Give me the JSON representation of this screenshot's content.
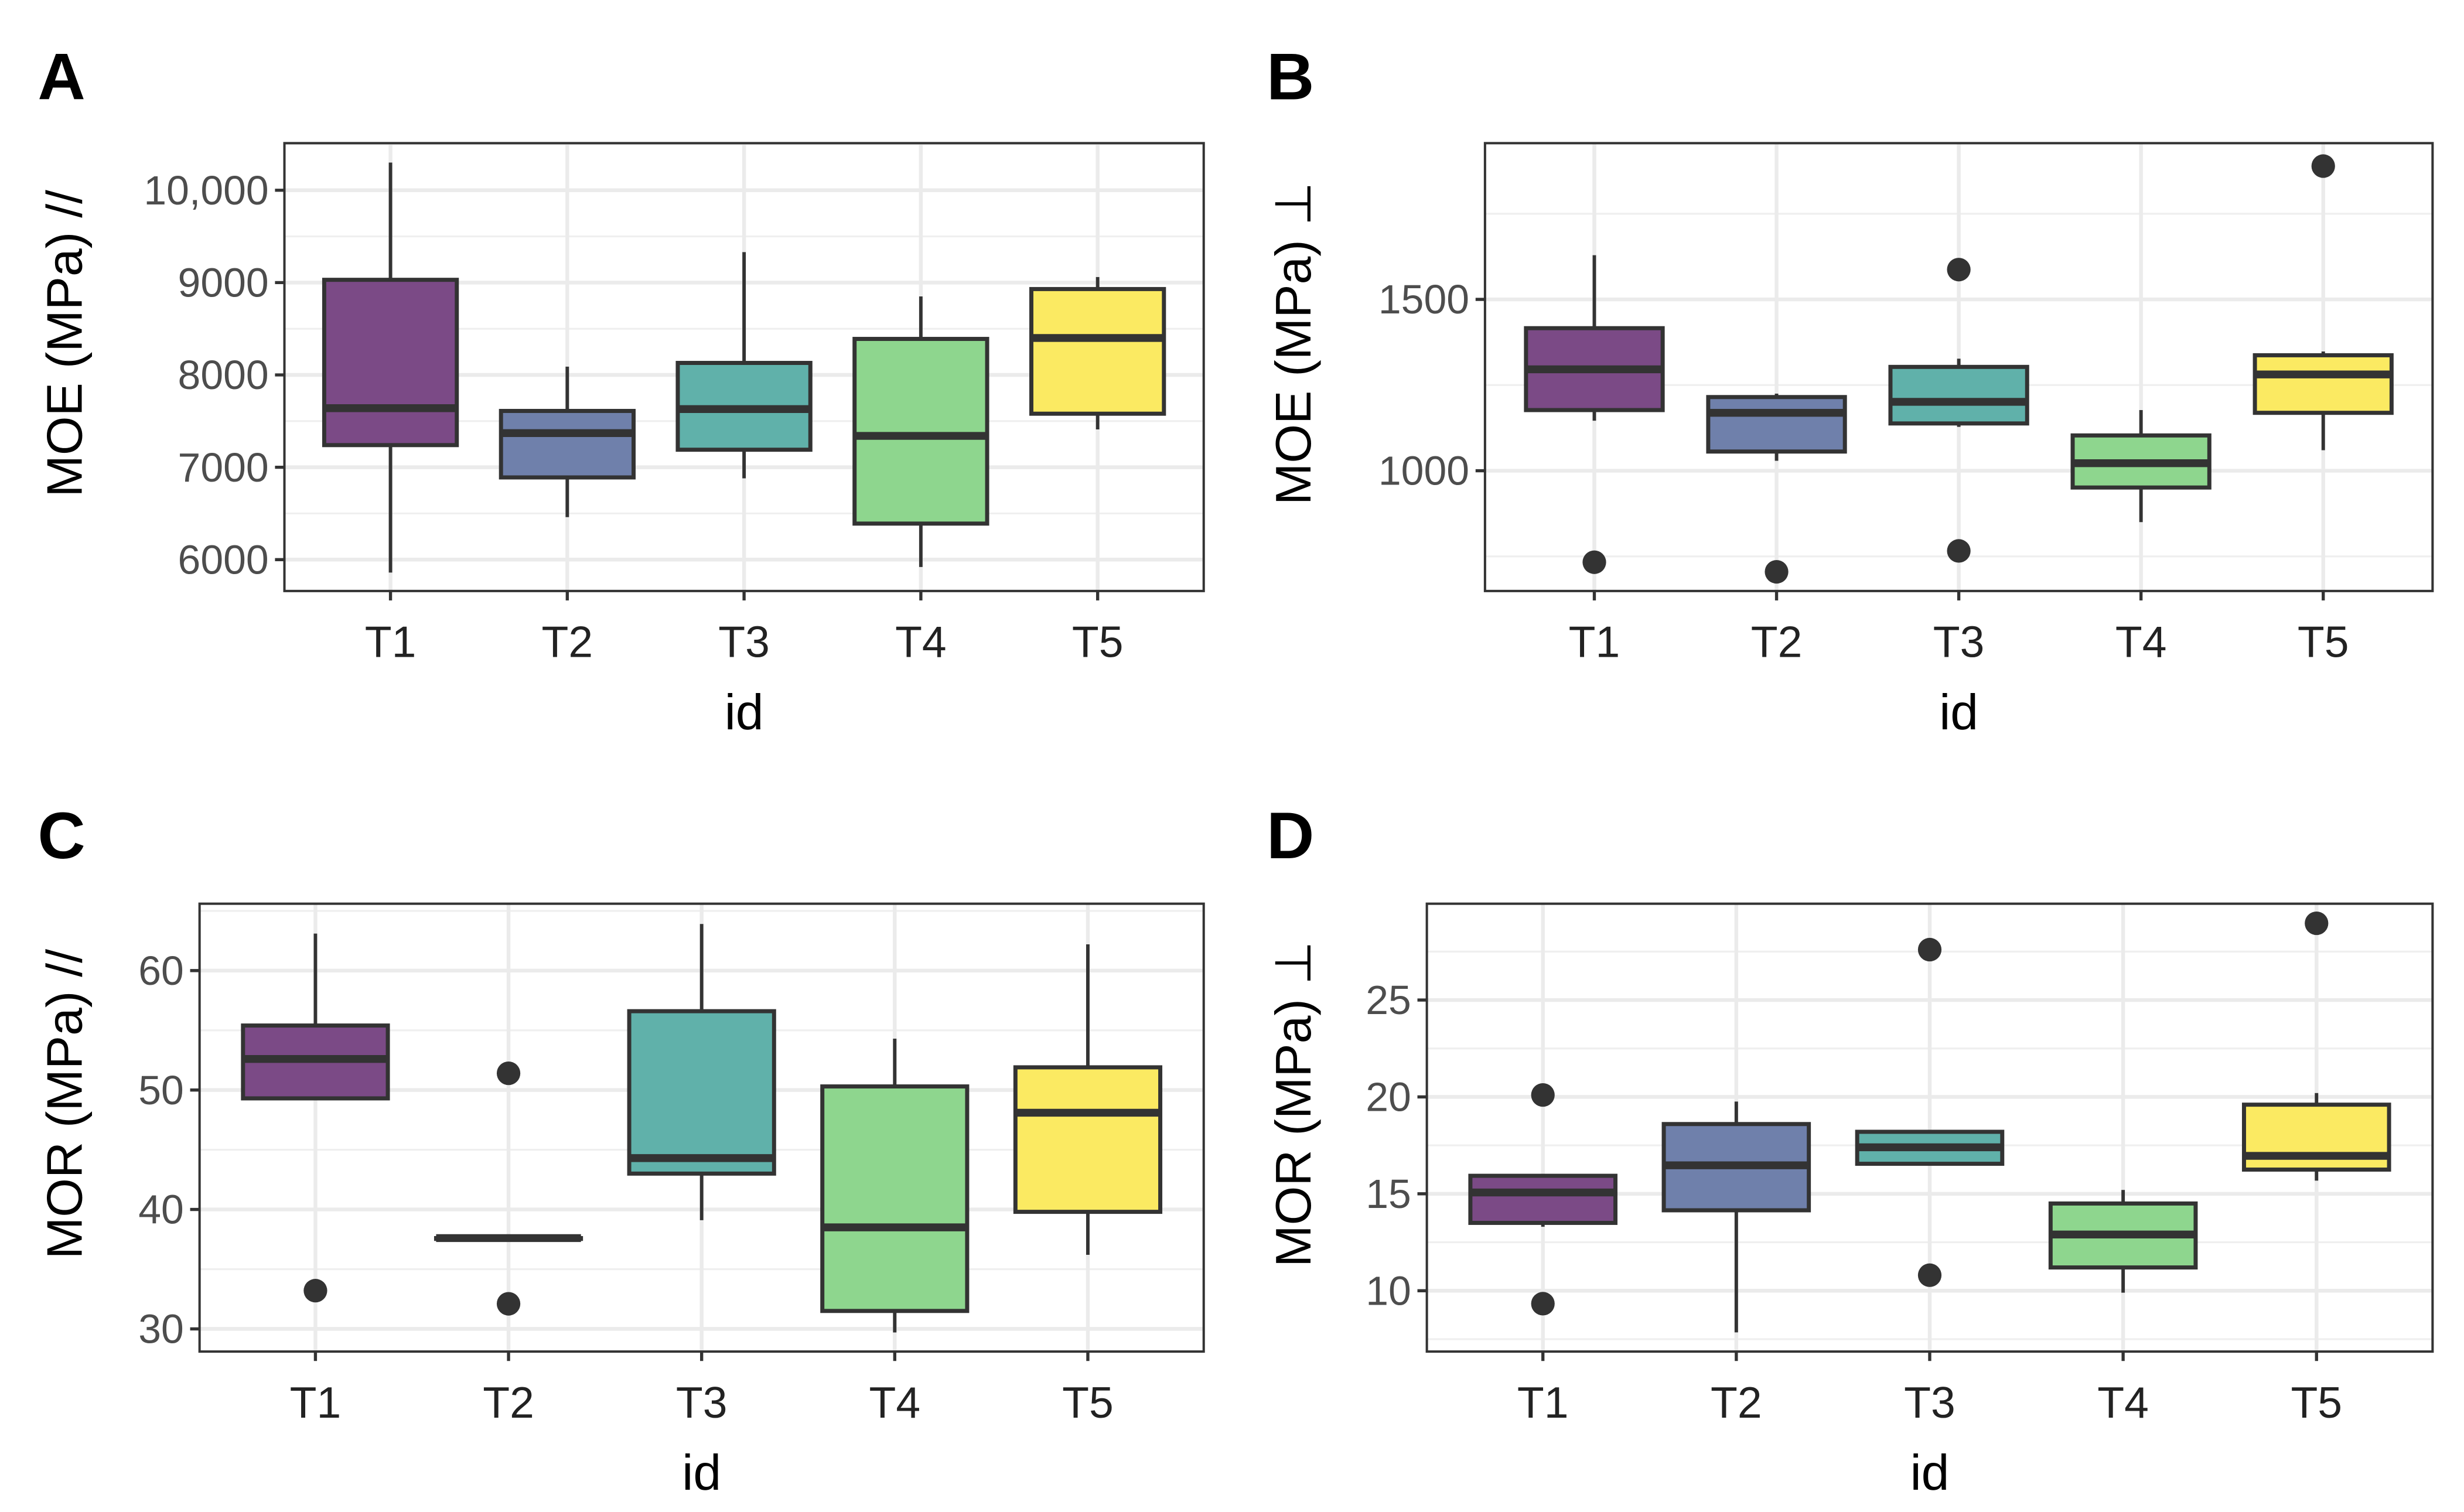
{
  "chart_data": [
    {
      "type": "box",
      "panel_label": "A",
      "ylabel": "MOE (MPa) //",
      "xlabel": "id",
      "categories": [
        "T1",
        "T2",
        "T3",
        "T4",
        "T5"
      ],
      "colors": [
        "#7b4a86",
        "#6f80ab",
        "#60b1aa",
        "#8ed68e",
        "#fbea62"
      ],
      "ylim": [
        5660,
        10510
      ],
      "yticks": [
        6000,
        7000,
        8000,
        9000,
        10000
      ],
      "ytick_labels": [
        "6000",
        "7000",
        "8000",
        "9000",
        "10,000"
      ],
      "grid": true,
      "boxes": [
        {
          "whisker_low": 5860,
          "q1": 7240,
          "median": 7640,
          "q3": 9030,
          "whisker_high": 10300,
          "outliers": []
        },
        {
          "whisker_low": 6460,
          "q1": 6890,
          "median": 7370,
          "q3": 7610,
          "whisker_high": 8090,
          "outliers": []
        },
        {
          "whisker_low": 6880,
          "q1": 7190,
          "median": 7630,
          "q3": 8130,
          "whisker_high": 9330,
          "outliers": []
        },
        {
          "whisker_low": 5920,
          "q1": 6390,
          "median": 7340,
          "q3": 8390,
          "whisker_high": 8850,
          "outliers": []
        },
        {
          "whisker_low": 7410,
          "q1": 7580,
          "median": 8400,
          "q3": 8930,
          "whisker_high": 9060,
          "outliers": []
        }
      ]
    },
    {
      "type": "box",
      "panel_label": "B",
      "ylabel": "MOE (MPa) ⊥",
      "xlabel": "id",
      "categories": [
        "T1",
        "T2",
        "T3",
        "T4",
        "T5"
      ],
      "colors": [
        "#7b4a86",
        "#6f80ab",
        "#60b1aa",
        "#8ed68e",
        "#fbea62"
      ],
      "ylim": [
        649,
        1956
      ],
      "yticks": [
        1000,
        1500
      ],
      "ytick_labels": [
        "1000",
        "1500"
      ],
      "grid": true,
      "boxes": [
        {
          "whisker_low": 1146,
          "q1": 1177,
          "median": 1296,
          "q3": 1416,
          "whisker_high": 1629,
          "outliers": [
            733
          ]
        },
        {
          "whisker_low": 1029,
          "q1": 1056,
          "median": 1169,
          "q3": 1215,
          "whisker_high": 1225,
          "outliers": [
            705
          ]
        },
        {
          "whisker_low": 1128,
          "q1": 1138,
          "median": 1201,
          "q3": 1303,
          "whisker_high": 1327,
          "outliers": [
            1587,
            766
          ]
        },
        {
          "whisker_low": 850,
          "q1": 951,
          "median": 1022,
          "q3": 1103,
          "whisker_high": 1177,
          "outliers": []
        },
        {
          "whisker_low": 1060,
          "q1": 1169,
          "median": 1281,
          "q3": 1337,
          "whisker_high": 1348,
          "outliers": [
            1889
          ]
        }
      ]
    },
    {
      "type": "box",
      "panel_label": "C",
      "ylabel": "MOR (MPa) //",
      "xlabel": "id",
      "categories": [
        "T1",
        "T2",
        "T3",
        "T4",
        "T5"
      ],
      "colors": [
        "#7b4a86",
        "#6f80ab",
        "#60b1aa",
        "#8ed68e",
        "#fbea62"
      ],
      "ylim": [
        28.1,
        65.6
      ],
      "yticks": [
        30,
        40,
        50,
        60
      ],
      "ytick_labels": [
        "30",
        "40",
        "50",
        "60"
      ],
      "grid": true,
      "boxes": [
        {
          "whisker_low": 49.3,
          "q1": 49.3,
          "median": 52.6,
          "q3": 55.4,
          "whisker_high": 63.1,
          "outliers": [
            33.2
          ]
        },
        {
          "whisker_low": 37.6,
          "q1": 37.6,
          "median": 37.6,
          "q3": 37.6,
          "whisker_high": 37.6,
          "outliers": [
            51.4,
            32.1
          ]
        },
        {
          "whisker_low": 39.1,
          "q1": 43.0,
          "median": 44.3,
          "q3": 56.6,
          "whisker_high": 63.9,
          "outliers": []
        },
        {
          "whisker_low": 29.7,
          "q1": 31.5,
          "median": 38.5,
          "q3": 50.3,
          "whisker_high": 54.3,
          "outliers": []
        },
        {
          "whisker_low": 36.2,
          "q1": 39.8,
          "median": 48.1,
          "q3": 51.9,
          "whisker_high": 62.2,
          "outliers": []
        }
      ]
    },
    {
      "type": "box",
      "panel_label": "D",
      "ylabel": "MOR (MPa) ⊥",
      "xlabel": "id",
      "categories": [
        "T1",
        "T2",
        "T3",
        "T4",
        "T5"
      ],
      "colors": [
        "#7b4a86",
        "#6f80ab",
        "#60b1aa",
        "#8ed68e",
        "#fbea62"
      ],
      "ylim": [
        6.86,
        29.97
      ],
      "yticks": [
        10,
        15,
        20,
        25
      ],
      "ytick_labels": [
        "10",
        "15",
        "20",
        "25"
      ],
      "grid": true,
      "boxes": [
        {
          "whisker_low": 13.3,
          "q1": 13.5,
          "median": 15.07,
          "q3": 15.93,
          "whisker_high": 15.93,
          "outliers": [
            20.1,
            9.33
          ]
        },
        {
          "whisker_low": 7.85,
          "q1": 14.15,
          "median": 16.47,
          "q3": 18.6,
          "whisker_high": 19.76,
          "outliers": []
        },
        {
          "whisker_low": 16.55,
          "q1": 16.55,
          "median": 17.4,
          "q3": 18.2,
          "whisker_high": 18.2,
          "outliers": [
            27.6,
            10.8
          ]
        },
        {
          "whisker_low": 9.9,
          "q1": 11.2,
          "median": 12.9,
          "q3": 14.5,
          "whisker_high": 15.2,
          "outliers": []
        },
        {
          "whisker_low": 15.68,
          "q1": 16.25,
          "median": 16.96,
          "q3": 19.6,
          "whisker_high": 20.2,
          "outliers": [
            28.96
          ]
        }
      ]
    }
  ]
}
